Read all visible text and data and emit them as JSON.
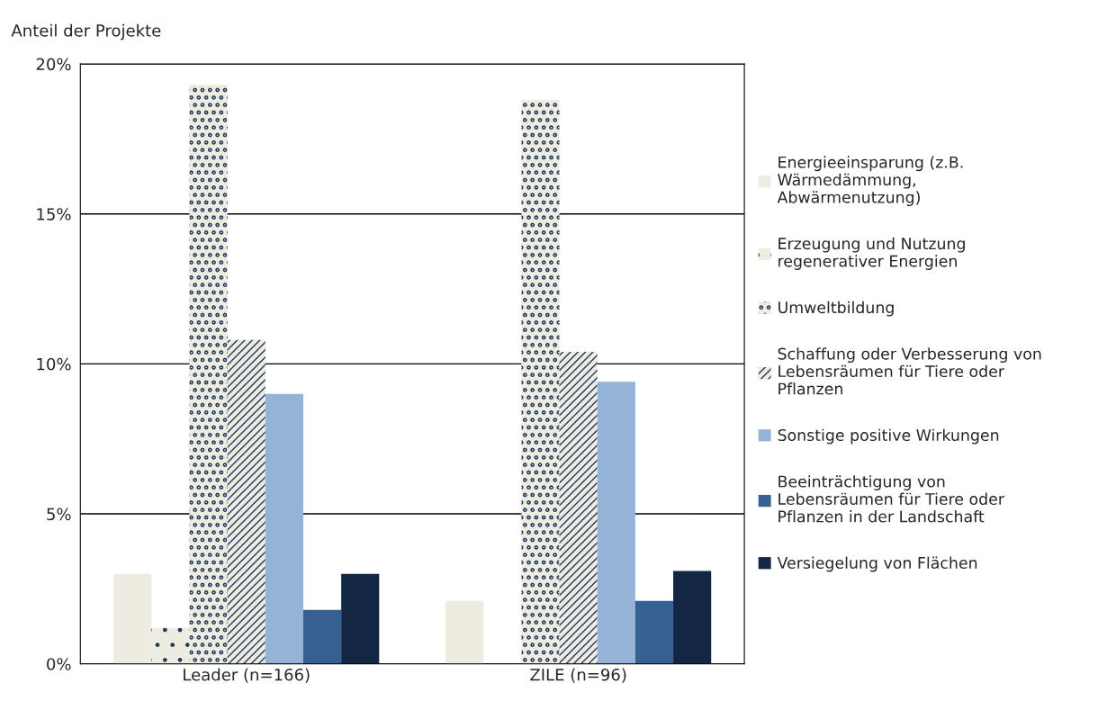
{
  "chart_data": {
    "type": "bar",
    "ylabel": "Anteil der Projekte",
    "categories": [
      "Leader (n=166)",
      "ZILE (n=96)"
    ],
    "series": [
      {
        "name": "Energieeinsparung (z.B.\nWärmedämmung,\nAbwärmenutzung)",
        "color": "#eeebe0",
        "values": [
          3.0,
          2.1
        ]
      },
      {
        "name": "Erzeugung und Nutzung\nregenerativer Energien",
        "color": "#eeebe0",
        "values": [
          1.2,
          null
        ]
      },
      {
        "name": "Umweltbildung",
        "color": "#1f3a5f",
        "values": [
          19.3,
          18.8
        ]
      },
      {
        "name": "Schaffung oder Verbesserung von\nLebensräumen für Tiere oder\nPflanzen",
        "color": "#1f3a5f",
        "values": [
          10.8,
          10.4
        ]
      },
      {
        "name": "Sonstige positive Wirkungen",
        "color": "#95b3d7",
        "values": [
          9.0,
          9.4
        ]
      },
      {
        "name": "Beeinträchtigung von\nLebensräumen für Tiere oder\nPflanzen in der Landschaft",
        "color": "#366092",
        "values": [
          1.8,
          2.1
        ]
      },
      {
        "name": "Versiegelung von Flächen",
        "color": "#132744",
        "values": [
          3.0,
          3.1
        ]
      }
    ],
    "ylim": [
      0,
      20
    ],
    "yticks": [
      {
        "value": 0,
        "label": "0%"
      },
      {
        "value": 5,
        "label": "5%"
      },
      {
        "value": 10,
        "label": "10%"
      },
      {
        "value": 15,
        "label": "15%"
      },
      {
        "value": 20,
        "label": "20%"
      }
    ],
    "grid": "y",
    "legend": "right"
  }
}
